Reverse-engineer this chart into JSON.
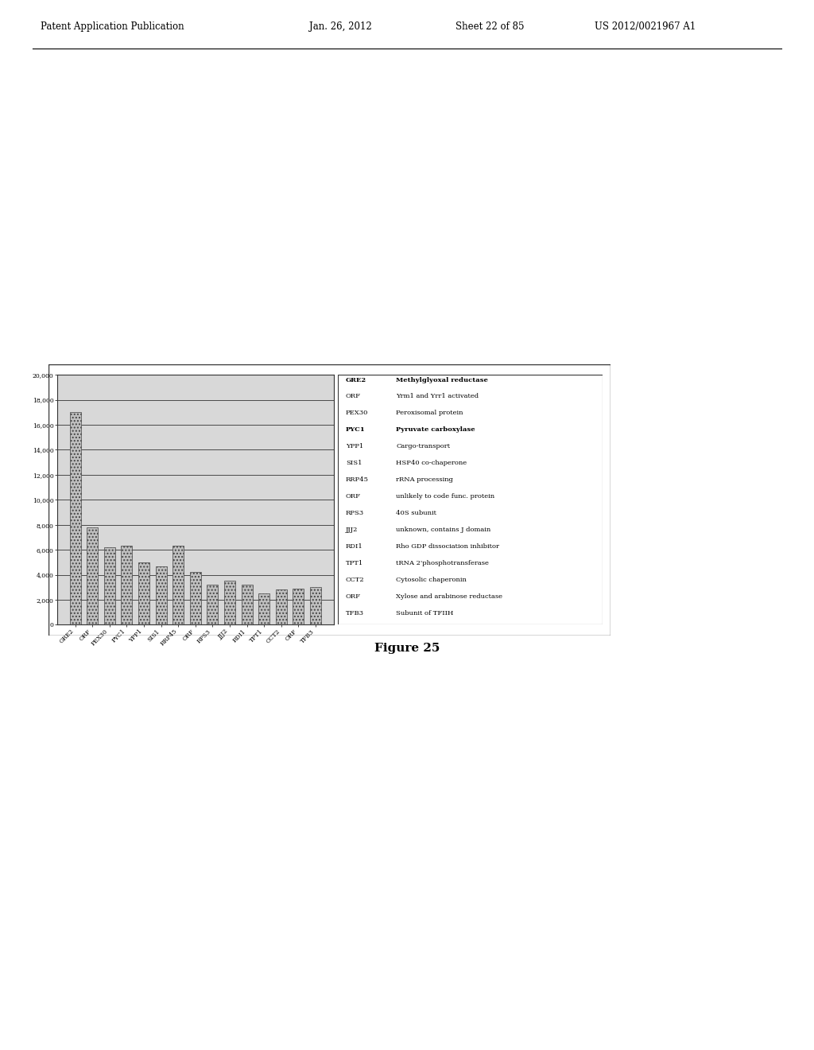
{
  "categories": [
    "GRE2",
    "ORF",
    "PEX30",
    "PYC1",
    "YPP1",
    "SIS1",
    "RRP45",
    "ORF",
    "RPS3",
    "JJJ2",
    "RDI1",
    "TPT1",
    "CCT2",
    "ORF",
    "TFB3"
  ],
  "values": [
    17000,
    7800,
    6200,
    6300,
    5000,
    4700,
    6300,
    4200,
    3200,
    3500,
    3200,
    2500,
    2800,
    2900,
    3000
  ],
  "ylim": [
    0,
    20000
  ],
  "yticks": [
    0,
    2000,
    4000,
    6000,
    8000,
    10000,
    12000,
    14000,
    16000,
    18000,
    20000
  ],
  "ytick_labels": [
    "0",
    "2,000",
    "4,000",
    "6,000",
    "8,000",
    "10,000",
    "12,000",
    "14,000",
    "16,000",
    "18,000",
    "20,000"
  ],
  "bar_color": "#c0c0c0",
  "bar_edge_color": "#444444",
  "background_color": "#ffffff",
  "chart_bg": "#d8d8d8",
  "figure_caption": "Figure 25",
  "legend_entries": [
    [
      "GRE2",
      "Methylglyoxal reductase",
      true
    ],
    [
      "ORF",
      "Yrm1 and Yrr1 activated",
      false
    ],
    [
      "PEX30",
      "Peroxisomal protein",
      false
    ],
    [
      "PYC1",
      "Pyruvate carboxylase",
      true
    ],
    [
      "YPP1",
      "Cargo-transport",
      false
    ],
    [
      "SIS1",
      "HSP40 co-chaperone",
      false
    ],
    [
      "RRP45",
      "rRNA processing",
      false
    ],
    [
      "ORF",
      "unlikely to code func. protein",
      false
    ],
    [
      "RPS3",
      "40S subunit",
      false
    ],
    [
      "JJJ2",
      "unknown, contains J domain",
      false
    ],
    [
      "RDI1",
      "Rho GDP dissociation inhibitor",
      false
    ],
    [
      "TPT1",
      "tRNA 2'phosphotransferase",
      false
    ],
    [
      "CCT2",
      "Cytosolic chaperonin",
      false
    ],
    [
      "ORF",
      "Xylose and arabinose reductase",
      false
    ],
    [
      "TFB3",
      "Subunit of TFIIH",
      false
    ]
  ],
  "title_left": "Patent Application Publication",
  "title_date": "Jan. 26, 2012",
  "title_sheet": "Sheet 22 of 85",
  "title_patent": "US 2012/0021967 A1"
}
